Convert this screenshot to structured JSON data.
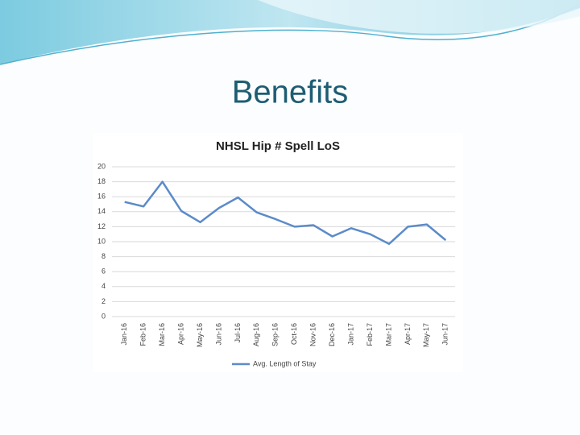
{
  "slide_title": "Benefits",
  "chart_data": {
    "type": "line",
    "title": "NHSL Hip # Spell LoS",
    "categories": [
      "Jan-16",
      "Feb-16",
      "Mar-16",
      "Apr-16",
      "May-16",
      "Jun-16",
      "Jul-16",
      "Aug-16",
      "Sep-16",
      "Oct-16",
      "Nov-16",
      "Dec-16",
      "Jan-17",
      "Feb-17",
      "Mar-17",
      "Apr-17",
      "May-17",
      "Jun-17"
    ],
    "series": [
      {
        "name": "Avg. Length of Stay",
        "color": "#5b8bc9",
        "values": [
          15.3,
          14.7,
          18,
          14.1,
          12.6,
          14.5,
          15.9,
          13.9,
          13.0,
          12.0,
          12.2,
          10.7,
          11.8,
          11.0,
          9.7,
          12.0,
          12.3,
          10.2
        ]
      }
    ],
    "ylim": [
      0,
      20
    ],
    "yticks": [
      0,
      2,
      4,
      6,
      8,
      10,
      12,
      14,
      16,
      18,
      20
    ],
    "grid": true,
    "legend": "bottom"
  }
}
